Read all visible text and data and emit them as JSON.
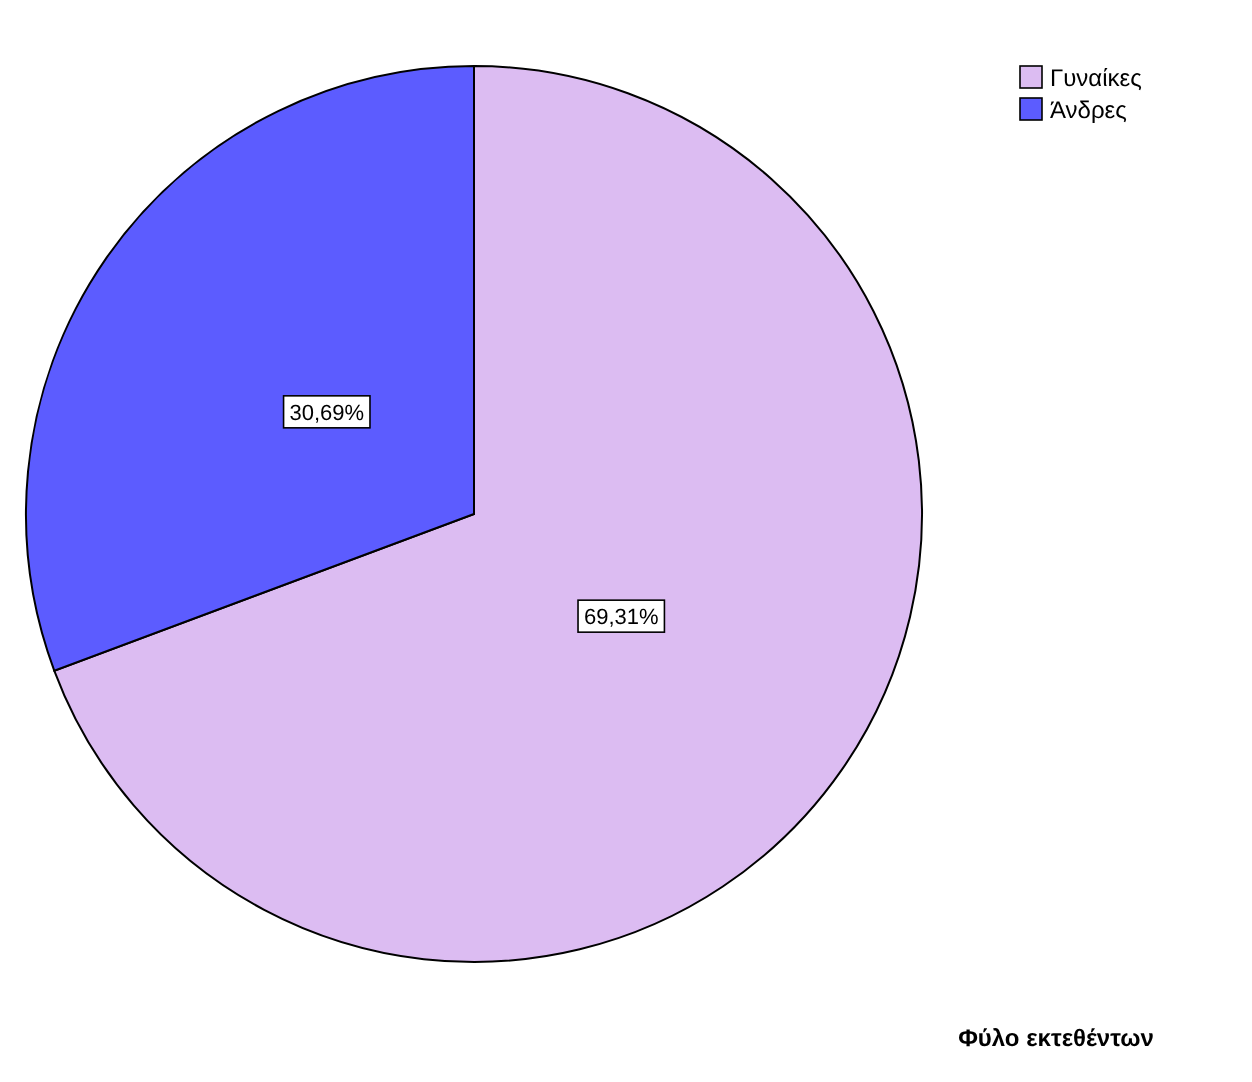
{
  "chart_data": {
    "type": "pie",
    "title": "Φύλο εκτεθέντων",
    "categories": [
      "Γυναίκες",
      "Άνδρες"
    ],
    "values": [
      69.31,
      30.69
    ],
    "colors": [
      "#dcbcf2",
      "#5c5cff"
    ],
    "value_labels": [
      "69,31%",
      "30,69%"
    ],
    "legend": "top right"
  }
}
